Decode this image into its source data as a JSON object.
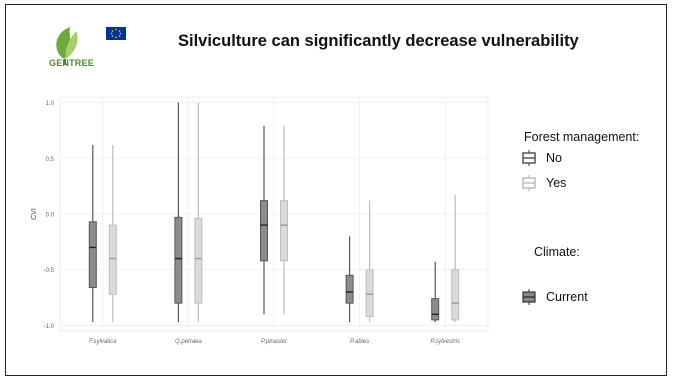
{
  "header": {
    "title": "Silviculture can significantly decrease vulnerability",
    "logo_text": "GENTREE"
  },
  "colors": {
    "no": "#555555",
    "yes": "#bdbdbd",
    "panel": "#ffffff",
    "grid": "#eeeeee",
    "logo_green": "#4f8a32",
    "eu_blue": "#003399",
    "eu_star": "#ffcc00"
  },
  "legend": {
    "title": "Forest management:",
    "items": [
      {
        "label": "No",
        "color": "#555555"
      },
      {
        "label": "Yes",
        "color": "#bdbdbd"
      }
    ]
  },
  "climate": {
    "title": "Climate:",
    "items": [
      {
        "label": "Current",
        "color": "#555555"
      }
    ]
  },
  "chart_data": {
    "type": "boxplot",
    "ylabel": "CVI",
    "ylim": [
      -1.05,
      1.05
    ],
    "yticks": [
      -1.0,
      -0.5,
      0.0,
      0.5,
      1.0
    ],
    "ytick_labels": [
      "-1.0",
      "-0.5",
      "0.0",
      "0.5",
      "1.0"
    ],
    "categories": [
      "F.sylvatica",
      "Q.petraea",
      "P.pinaster",
      "P.abies",
      "P.sylvestris"
    ],
    "grid": true,
    "legend_position": "right",
    "series": [
      {
        "name": "No",
        "boxes": [
          {
            "min": -0.97,
            "q1": -0.66,
            "median": -0.3,
            "q3": -0.07,
            "max": 0.62
          },
          {
            "min": -0.97,
            "q1": -0.8,
            "median": -0.4,
            "q3": -0.03,
            "max": 1.0
          },
          {
            "min": -0.9,
            "q1": -0.42,
            "median": -0.1,
            "q3": 0.12,
            "max": 0.79
          },
          {
            "min": -0.97,
            "q1": -0.8,
            "median": -0.7,
            "q3": -0.55,
            "max": -0.2
          },
          {
            "min": -0.97,
            "q1": -0.95,
            "median": -0.9,
            "q3": -0.76,
            "max": -0.43
          }
        ]
      },
      {
        "name": "Yes",
        "boxes": [
          {
            "min": -0.97,
            "q1": -0.72,
            "median": -0.4,
            "q3": -0.1,
            "max": 0.62
          },
          {
            "min": -0.97,
            "q1": -0.8,
            "median": -0.4,
            "q3": -0.04,
            "max": 1.0
          },
          {
            "min": -0.9,
            "q1": -0.42,
            "median": -0.1,
            "q3": 0.12,
            "max": 0.79
          },
          {
            "min": -0.97,
            "q1": -0.92,
            "median": -0.72,
            "q3": -0.5,
            "max": 0.12
          },
          {
            "min": -0.97,
            "q1": -0.95,
            "median": -0.8,
            "q3": -0.5,
            "max": 0.17
          }
        ]
      }
    ]
  }
}
